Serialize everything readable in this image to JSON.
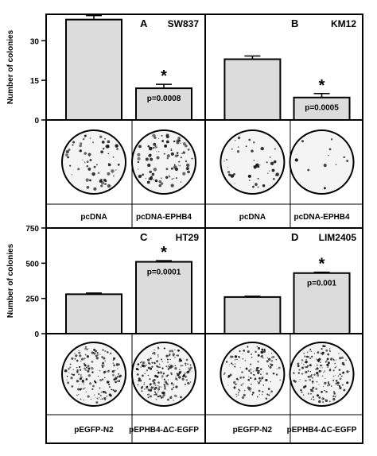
{
  "chart_data": [
    {
      "type": "bar",
      "panel": "A",
      "title": "SW837",
      "ylabel": "Number of colonies",
      "ylim": [
        0,
        40
      ],
      "yticks": [
        0,
        15,
        30
      ],
      "categories": [
        "pcDNA",
        "pcDNA-EPHB4"
      ],
      "values": [
        38,
        12
      ],
      "errors": [
        1.5,
        1.5
      ],
      "significance": {
        "star": "*",
        "pvalue": "p=0.0008"
      }
    },
    {
      "type": "bar",
      "panel": "B",
      "title": "KM12",
      "ylabel": "",
      "ylim": [
        0,
        40
      ],
      "categories": [
        "pcDNA",
        "pcDNA-EPHB4"
      ],
      "values": [
        23,
        8.5
      ],
      "errors": [
        1.2,
        1.5
      ],
      "significance": {
        "star": "*",
        "pvalue": "p=0.0005"
      }
    },
    {
      "type": "bar",
      "panel": "C",
      "title": "HT29",
      "ylabel": "Number of colonies",
      "ylim": [
        0,
        750
      ],
      "yticks": [
        0,
        250,
        500,
        750
      ],
      "categories": [
        "pEGFP-N2",
        "pEPHB4-ΔC-EGFP"
      ],
      "values": [
        280,
        510
      ],
      "errors": [
        8,
        8
      ],
      "significance": {
        "star": "*",
        "pvalue": "p=0.0001"
      }
    },
    {
      "type": "bar",
      "panel": "D",
      "title": "LIM2405",
      "ylabel": "",
      "ylim": [
        0,
        750
      ],
      "categories": [
        "pEGFP-N2",
        "pEPHB4-ΔC-EGFP"
      ],
      "values": [
        260,
        430
      ],
      "errors": [
        6,
        6
      ],
      "significance": {
        "star": "*",
        "pvalue": "p=0.001"
      }
    }
  ],
  "style": {
    "bar_fill": "#dcdcdc",
    "stroke": "#000000",
    "plate_fill": "#f4f4f4"
  }
}
